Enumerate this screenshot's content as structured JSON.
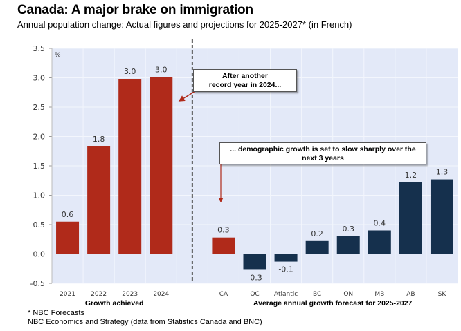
{
  "header": {
    "title": "Canada: A major brake on immigration",
    "subtitle": "Annual population change: Actual figures and projections for 2025-2027* (in French)"
  },
  "footer": {
    "note": "* NBC Forecasts",
    "source": "NBC Economics and Strategy (data from Statistics Canada and BNC)"
  },
  "chart_data": {
    "type": "bar",
    "title": "Canada: A major brake on immigration",
    "subtitle": "Annual population change: Actual figures and projections for 2025-2027* (in French)",
    "ylabel": "%",
    "xlabel": "",
    "ylim": [
      -0.5,
      3.5
    ],
    "yticks": [
      -0.5,
      0.0,
      0.5,
      1.0,
      1.5,
      2.0,
      2.5,
      3.0,
      3.5
    ],
    "ytick_labels": [
      "-0.5",
      "0.0",
      "0.5",
      "1.0",
      "1.5",
      "2.0",
      "2.5",
      "3.0",
      "3.5"
    ],
    "grid": true,
    "colors": {
      "actual": "#b02a1a",
      "canada_forecast": "#b02a1a",
      "province_forecast": "#15304d",
      "background": "#e3e9f8"
    },
    "groups": [
      {
        "label": "Growth achieved",
        "categories": [
          "2021",
          "2022",
          "2023",
          "2024"
        ],
        "values": [
          0.6,
          1.8,
          3.0,
          3.0
        ],
        "value_labels": [
          "0.6",
          "1.8",
          "3.0",
          "3.0"
        ],
        "colors": [
          "#b02a1a",
          "#b02a1a",
          "#b02a1a",
          "#b02a1a"
        ]
      },
      {
        "label": "Average annual growth forecast for 2025-2027",
        "categories": [
          "CA",
          "QC",
          "Atlantic",
          "BC",
          "ON",
          "MB",
          "AB",
          "SK"
        ],
        "values": [
          0.3,
          -0.3,
          -0.1,
          0.2,
          0.3,
          0.4,
          1.2,
          1.3
        ],
        "value_labels": [
          "0.3",
          "-0.3",
          "-0.1",
          "0.2",
          "0.3",
          "0.4",
          "1.2",
          "1.3"
        ],
        "colors": [
          "#b02a1a",
          "#15304d",
          "#15304d",
          "#15304d",
          "#15304d",
          "#15304d",
          "#15304d",
          "#15304d"
        ]
      }
    ],
    "bar_heights_actual": [
      0.55,
      1.83,
      2.98,
      3.01,
      0.28,
      -0.27,
      -0.13,
      0.22,
      0.3,
      0.4,
      1.22,
      1.27
    ],
    "annotations": [
      {
        "text": "After another record year in 2024...",
        "lines": [
          "After another",
          "record year in 2024..."
        ],
        "points_to": "2024"
      },
      {
        "text": "... demographic growth is set to slow sharply over the next 3 years",
        "lines": [
          "... demographic growth is set to slow sharply over the",
          "next 3 years"
        ],
        "points_to": "CA"
      }
    ],
    "divider": "dashed vertical line between 2024 and CA"
  }
}
